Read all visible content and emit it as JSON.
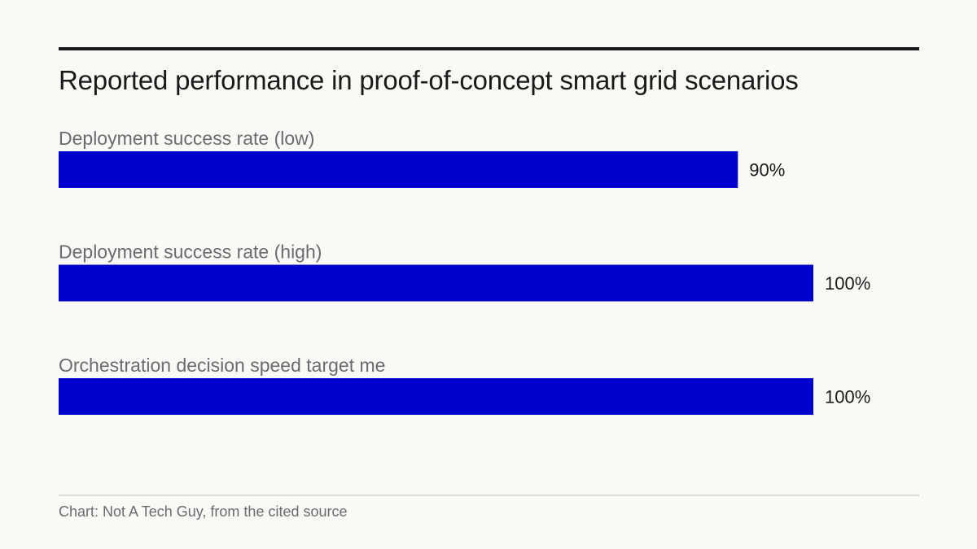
{
  "chart_data": {
    "type": "bar",
    "orientation": "horizontal",
    "title": "Reported performance in proof-of-concept smart grid scenarios",
    "categories": [
      "Deployment success rate (low)",
      "Deployment success rate (high)",
      "Orchestration decision speed target me"
    ],
    "values": [
      90,
      100,
      100
    ],
    "value_labels": [
      "90%",
      "100%",
      "100%"
    ],
    "unit": "%",
    "xlim": [
      0,
      100
    ],
    "grid": false,
    "legend": "none",
    "bar_color": "#0000cc"
  },
  "footer": {
    "source": "Chart: Not A Tech Guy, from the cited source"
  }
}
